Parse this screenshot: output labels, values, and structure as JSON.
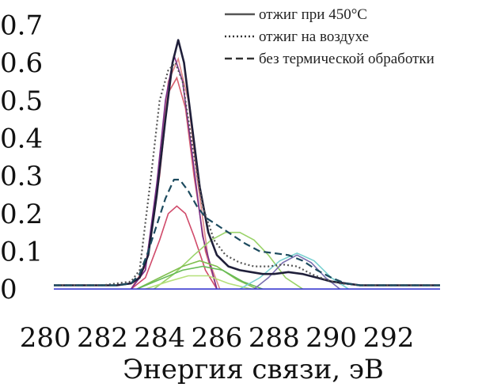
{
  "chart_data": {
    "type": "line",
    "title": "",
    "xlabel": "Энергия связи, эВ",
    "ylabel": "",
    "xlim": [
      280.3,
      293.8
    ],
    "ylim": [
      -0.01,
      0.72
    ],
    "x_ticks": [
      "280",
      "282",
      "284",
      "286",
      "288",
      "290",
      "292"
    ],
    "y_ticks": [
      "0",
      "0.1",
      "0.2",
      "0.3",
      "0.4",
      "0.5",
      "0.6",
      "0.7"
    ],
    "legend_position": "top-right",
    "series": [
      {
        "name": "отжиг при 450°C",
        "style": "solid",
        "color": "#1f1f3a",
        "x": [
          280.3,
          281.0,
          282.0,
          282.5,
          283.0,
          283.3,
          283.6,
          283.9,
          284.2,
          284.45,
          284.65,
          284.85,
          285.1,
          285.4,
          285.7,
          286.0,
          286.4,
          286.8,
          287.2,
          287.6,
          288.0,
          288.5,
          289.0,
          289.5,
          290.0,
          290.5,
          291.0,
          292.0,
          293.0,
          293.8
        ],
        "y": [
          0.01,
          0.01,
          0.01,
          0.01,
          0.015,
          0.03,
          0.09,
          0.25,
          0.45,
          0.6,
          0.66,
          0.6,
          0.45,
          0.27,
          0.15,
          0.09,
          0.06,
          0.05,
          0.045,
          0.04,
          0.04,
          0.045,
          0.04,
          0.03,
          0.02,
          0.015,
          0.01,
          0.01,
          0.01,
          0.01
        ]
      },
      {
        "name": "отжиг на воздухе",
        "style": "dotted",
        "color": "#555555",
        "x": [
          280.3,
          281.0,
          282.0,
          283.0,
          283.3,
          283.7,
          284.0,
          284.3,
          284.55,
          284.8,
          285.1,
          285.5,
          285.9,
          286.3,
          286.8,
          287.3,
          287.8,
          288.3,
          288.8,
          289.3,
          289.8,
          290.3,
          291.0,
          292.0,
          293.0,
          293.8
        ],
        "y": [
          0.01,
          0.01,
          0.01,
          0.02,
          0.05,
          0.3,
          0.5,
          0.58,
          0.6,
          0.55,
          0.4,
          0.22,
          0.13,
          0.09,
          0.07,
          0.06,
          0.06,
          0.065,
          0.06,
          0.04,
          0.025,
          0.015,
          0.01,
          0.01,
          0.01,
          0.01
        ]
      },
      {
        "name": "без термической обработки",
        "style": "dashed",
        "color": "#1d4b5f",
        "x": [
          280.3,
          281.0,
          282.0,
          282.5,
          283.0,
          283.3,
          283.6,
          283.9,
          284.2,
          284.5,
          284.7,
          285.0,
          285.3,
          285.6,
          286.0,
          286.5,
          287.0,
          287.5,
          288.0,
          288.5,
          289.0,
          289.5,
          290.0,
          290.5,
          291.0,
          292.0,
          293.0,
          293.8
        ],
        "y": [
          0.01,
          0.01,
          0.01,
          0.01,
          0.015,
          0.04,
          0.1,
          0.17,
          0.24,
          0.29,
          0.29,
          0.26,
          0.22,
          0.19,
          0.17,
          0.145,
          0.12,
          0.1,
          0.095,
          0.09,
          0.075,
          0.05,
          0.03,
          0.015,
          0.01,
          0.01,
          0.01,
          0.01
        ]
      }
    ],
    "fit_components": [
      {
        "color": "#d7606e",
        "x": [
          283.0,
          283.5,
          284.0,
          284.3,
          284.6,
          284.9,
          285.2,
          285.6,
          286.0
        ],
        "y": [
          0.0,
          0.06,
          0.3,
          0.52,
          0.56,
          0.48,
          0.3,
          0.1,
          0.0
        ]
      },
      {
        "color": "#e08a8a",
        "x": [
          283.0,
          283.5,
          284.0,
          284.3,
          284.65,
          285.0,
          285.3,
          285.7,
          286.1
        ],
        "y": [
          0.0,
          0.05,
          0.32,
          0.55,
          0.61,
          0.5,
          0.3,
          0.08,
          0.0
        ]
      },
      {
        "color": "#d04a6a",
        "x": [
          283.0,
          283.5,
          284.0,
          284.3,
          284.6,
          284.9,
          285.2,
          285.6,
          286.0
        ],
        "y": [
          0.0,
          0.03,
          0.13,
          0.2,
          0.22,
          0.2,
          0.14,
          0.05,
          0.0
        ]
      },
      {
        "color": "#7a2f8a",
        "x": [
          283.0,
          283.5,
          283.9,
          284.2,
          284.5,
          284.8,
          285.1,
          285.5,
          286.0
        ],
        "y": [
          0.0,
          0.05,
          0.28,
          0.5,
          0.62,
          0.55,
          0.38,
          0.14,
          0.0
        ]
      },
      {
        "color": "#9ad36a",
        "x": [
          283.8,
          284.5,
          285.2,
          285.8,
          286.3,
          286.8,
          287.3,
          287.8,
          288.4,
          289.0
        ],
        "y": [
          0.0,
          0.04,
          0.09,
          0.13,
          0.15,
          0.15,
          0.13,
          0.09,
          0.03,
          0.0
        ]
      },
      {
        "color": "#7fbf4f",
        "x": [
          283.2,
          284.0,
          284.8,
          285.4,
          286.0,
          286.7,
          287.4
        ],
        "y": [
          0.0,
          0.03,
          0.06,
          0.075,
          0.06,
          0.025,
          0.0
        ]
      },
      {
        "color": "#66bb55",
        "x": [
          283.2,
          284.0,
          284.8,
          285.5,
          286.2,
          286.9,
          287.6
        ],
        "y": [
          0.0,
          0.025,
          0.05,
          0.06,
          0.05,
          0.02,
          0.0
        ]
      },
      {
        "color": "#b5e07a",
        "x": [
          283.5,
          284.3,
          285.0,
          285.7,
          286.4,
          287.2
        ],
        "y": [
          0.0,
          0.02,
          0.035,
          0.035,
          0.015,
          0.0
        ]
      },
      {
        "color": "#7a6fb0",
        "x": [
          287.3,
          287.8,
          288.3,
          288.8,
          289.3,
          289.8,
          290.3
        ],
        "y": [
          0.0,
          0.03,
          0.07,
          0.09,
          0.07,
          0.03,
          0.0
        ]
      },
      {
        "color": "#7ad0d0",
        "x": [
          286.8,
          287.5,
          288.2,
          288.8,
          289.4,
          290.0,
          290.6
        ],
        "y": [
          0.0,
          0.03,
          0.075,
          0.095,
          0.075,
          0.03,
          0.0
        ]
      },
      {
        "color": "#3a3ad0",
        "x": [
          280.3,
          293.8
        ],
        "y": [
          0.0,
          0.0
        ]
      }
    ]
  }
}
